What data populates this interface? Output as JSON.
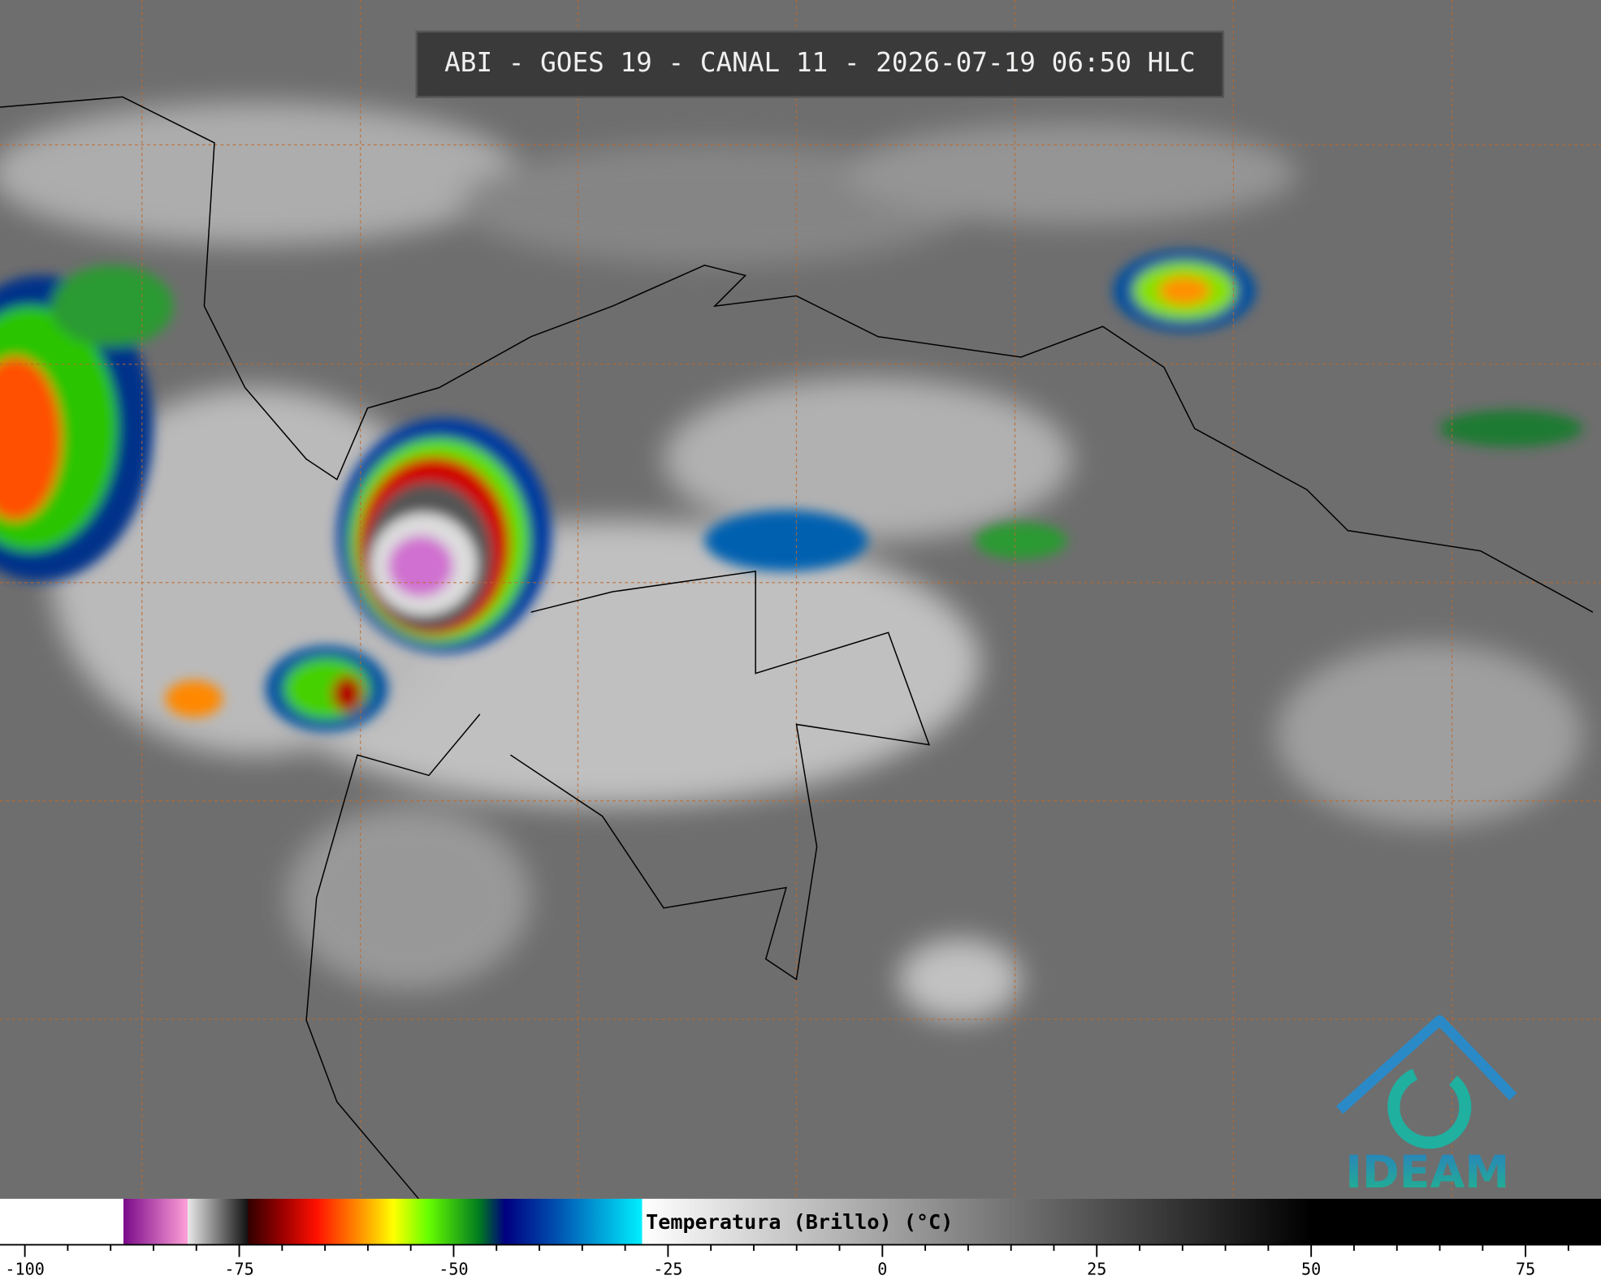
{
  "title": "ABI - GOES 19 - CANAL 11 - 2026-07-19 06:50 HLC",
  "logo": "IDEAM",
  "colorbar": {
    "label": "Temperatura (Brillo) (°C)",
    "lim": [
      -102.9,
      83.8
    ],
    "ticks": [
      -100,
      -75,
      -50,
      -25,
      0,
      25,
      50,
      75
    ],
    "minor_ticks": [
      -95,
      -90,
      -85,
      -80,
      -70,
      -65,
      -60,
      -55,
      -45,
      -40,
      -35,
      -30,
      -20,
      -15,
      -10,
      -5,
      5,
      10,
      15,
      20,
      30,
      35,
      40,
      45,
      55,
      60,
      65,
      70,
      80
    ],
    "stops": [
      {
        "value": -102.9,
        "color": "#ffffff"
      },
      {
        "value": -88.5,
        "color": "#ffffff"
      },
      {
        "value": -88.5,
        "color": "#7a0a8a"
      },
      {
        "value": -81,
        "color": "#ffa0d8"
      },
      {
        "value": -81,
        "color": "#e8e8e8"
      },
      {
        "value": -74,
        "color": "#111111"
      },
      {
        "value": -74,
        "color": "#300000"
      },
      {
        "value": -70,
        "color": "#9a0000"
      },
      {
        "value": -66,
        "color": "#ff1000"
      },
      {
        "value": -61,
        "color": "#ff9000"
      },
      {
        "value": -57,
        "color": "#ffff00"
      },
      {
        "value": -53,
        "color": "#66ff00"
      },
      {
        "value": -47,
        "color": "#007a20"
      },
      {
        "value": -44,
        "color": "#000080"
      },
      {
        "value": -38,
        "color": "#0050b0"
      },
      {
        "value": -28,
        "color": "#00f0ff"
      },
      {
        "value": -28,
        "color": "#ffffff"
      },
      {
        "value": 50,
        "color": "#000000"
      },
      {
        "value": 83.8,
        "color": "#000000"
      }
    ]
  }
}
